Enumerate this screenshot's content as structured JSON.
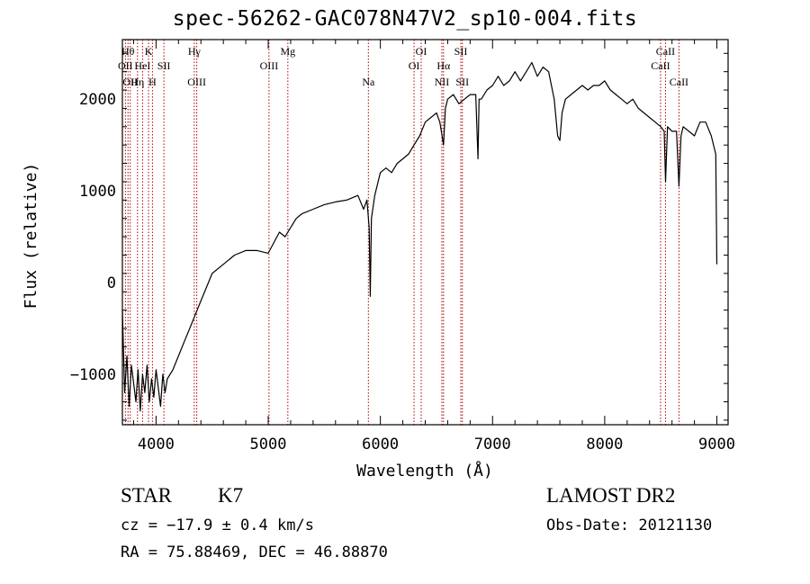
{
  "chart_data": {
    "type": "line",
    "title": "spec-56262-GAC078N47V2_sp10-004.fits",
    "xlabel": "Wavelength (Å)",
    "ylabel": "Flux (relative)",
    "xlim": [
      3700,
      9100
    ],
    "ylim": [
      -1550,
      2650
    ],
    "x_ticks": [
      4000,
      5000,
      6000,
      7000,
      8000,
      9000
    ],
    "y_ticks": [
      -1000,
      0,
      1000,
      2000
    ],
    "x_tick_labels": [
      "4000",
      "5000",
      "6000",
      "7000",
      "8000",
      "9000"
    ],
    "y_tick_labels": [
      "−1000",
      "0",
      "1000",
      "2000"
    ],
    "series": [
      {
        "x": [
          3700,
          3720,
          3740,
          3760,
          3780,
          3800,
          3820,
          3840,
          3860,
          3880,
          3900,
          3920,
          3940,
          3960,
          3980,
          4000,
          4020,
          4040,
          4060,
          4080,
          4100,
          4150,
          4200,
          4250,
          4300,
          4350,
          4400,
          4450,
          4500,
          4600,
          4700,
          4800,
          4900,
          5000,
          5100,
          5150,
          5200,
          5250,
          5300,
          5400,
          5500,
          5600,
          5700,
          5800,
          5850,
          5880,
          5900,
          5910,
          5920,
          5950,
          6000,
          6050,
          6100,
          6150,
          6200,
          6250,
          6300,
          6350,
          6400,
          6450,
          6500,
          6530,
          6550,
          6563,
          6580,
          6600,
          6650,
          6700,
          6750,
          6800,
          6850,
          6870,
          6880,
          6900,
          6950,
          7000,
          7050,
          7100,
          7150,
          7200,
          7250,
          7300,
          7350,
          7400,
          7450,
          7500,
          7550,
          7580,
          7600,
          7620,
          7650,
          7700,
          7750,
          7800,
          7850,
          7900,
          7950,
          8000,
          8050,
          8100,
          8150,
          8200,
          8250,
          8300,
          8350,
          8400,
          8450,
          8500,
          8530,
          8542,
          8560,
          8600,
          8640,
          8662,
          8680,
          8700,
          8750,
          8800,
          8850,
          8900,
          8950,
          8990,
          9000
        ],
        "y": [
          -300,
          -1200,
          -800,
          -1350,
          -900,
          -1100,
          -1300,
          -950,
          -1400,
          -1000,
          -1200,
          -900,
          -1300,
          -1050,
          -1250,
          -950,
          -1150,
          -1350,
          -1000,
          -1200,
          -1050,
          -950,
          -800,
          -650,
          -500,
          -350,
          -200,
          -50,
          100,
          200,
          300,
          350,
          350,
          320,
          550,
          500,
          600,
          700,
          750,
          800,
          850,
          880,
          900,
          950,
          800,
          900,
          600,
          -150,
          700,
          950,
          1200,
          1250,
          1200,
          1300,
          1350,
          1400,
          1500,
          1600,
          1750,
          1800,
          1850,
          1750,
          1600,
          1500,
          1900,
          2000,
          2050,
          1950,
          2000,
          2050,
          2050,
          1350,
          2000,
          2000,
          2100,
          2150,
          2250,
          2150,
          2200,
          2300,
          2200,
          2300,
          2400,
          2250,
          2350,
          2300,
          2000,
          1600,
          1550,
          1850,
          2000,
          2050,
          2100,
          2150,
          2100,
          2150,
          2150,
          2200,
          2100,
          2050,
          2000,
          1950,
          2000,
          1900,
          1850,
          1800,
          1750,
          1700,
          1650,
          1100,
          1700,
          1650,
          1650,
          1050,
          1600,
          1700,
          1650,
          1600,
          1750,
          1750,
          1600,
          1400,
          200
        ]
      }
    ],
    "line_markers": [
      {
        "wave": 3727,
        "label": "OII",
        "row": 2
      },
      {
        "wave": 3750,
        "label": "Hθ",
        "row": 1
      },
      {
        "wave": 3770,
        "label": "OII",
        "row": 3
      },
      {
        "wave": 3835,
        "label": "Hη",
        "row": 3
      },
      {
        "wave": 3880,
        "label": "HeI",
        "row": 2
      },
      {
        "wave": 3933,
        "label": "K",
        "row": 1
      },
      {
        "wave": 3968,
        "label": "H",
        "row": 3
      },
      {
        "wave": 4070,
        "label": "SII",
        "row": 2
      },
      {
        "wave": 4341,
        "label": "Hγ",
        "row": 1
      },
      {
        "wave": 4363,
        "label": "OIII",
        "row": 3
      },
      {
        "wave": 5007,
        "label": "OIII",
        "row": 2
      },
      {
        "wave": 5175,
        "label": "Mg",
        "row": 1
      },
      {
        "wave": 5893,
        "label": "Na",
        "row": 3
      },
      {
        "wave": 6300,
        "label": "OI",
        "row": 2
      },
      {
        "wave": 6364,
        "label": "OI",
        "row": 1
      },
      {
        "wave": 6548,
        "label": "NII",
        "row": 3
      },
      {
        "wave": 6563,
        "label": "Hα",
        "row": 2
      },
      {
        "wave": 6717,
        "label": "SII",
        "row": 1
      },
      {
        "wave": 6731,
        "label": "SII",
        "row": 3
      },
      {
        "wave": 8498,
        "label": "CaII",
        "row": 2
      },
      {
        "wave": 8542,
        "label": "CaII",
        "row": 1
      },
      {
        "wave": 8662,
        "label": "CaII",
        "row": 3
      }
    ],
    "colors": {
      "spectrum": "#000000",
      "marker": "#b00000"
    }
  },
  "footer": {
    "class_label": "STAR",
    "subclass": "K7",
    "survey": "LAMOST DR2",
    "cz": "cz = −17.9 ± 0.4 km/s",
    "obs_date": "Obs-Date: 20121130",
    "coords": "RA =  75.88469, DEC =  46.88870"
  }
}
